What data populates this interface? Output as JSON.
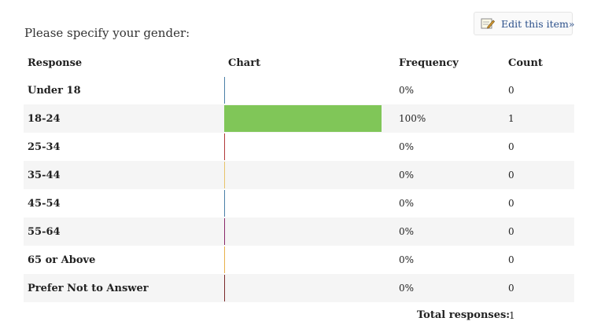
{
  "edit_button": {
    "label": "Edit this item»"
  },
  "question": "Please specify your gender:",
  "table": {
    "headers": {
      "response": "Response",
      "chart": "Chart",
      "frequency": "Frequency",
      "count": "Count"
    },
    "rows": [
      {
        "response": "Under 18",
        "frequency": "0%",
        "count": "0",
        "percent": 0,
        "color": "#4a7fa8"
      },
      {
        "response": "18-24",
        "frequency": "100%",
        "count": "1",
        "percent": 100,
        "color": "#80c658"
      },
      {
        "response": "25-34",
        "frequency": "0%",
        "count": "0",
        "percent": 0,
        "color": "#b23a3a"
      },
      {
        "response": "35-44",
        "frequency": "0%",
        "count": "0",
        "percent": 0,
        "color": "#e8c36a"
      },
      {
        "response": "45-54",
        "frequency": "0%",
        "count": "0",
        "percent": 0,
        "color": "#4a7fa8"
      },
      {
        "response": "55-64",
        "frequency": "0%",
        "count": "0",
        "percent": 0,
        "color": "#8a2a6a"
      },
      {
        "response": "65 or Above",
        "frequency": "0%",
        "count": "0",
        "percent": 0,
        "color": "#e8b04a"
      },
      {
        "response": "Prefer Not to Answer",
        "frequency": "0%",
        "count": "0",
        "percent": 0,
        "color": "#7a2a2a"
      }
    ]
  },
  "total": {
    "label": "Total responses:",
    "value": "1"
  }
}
